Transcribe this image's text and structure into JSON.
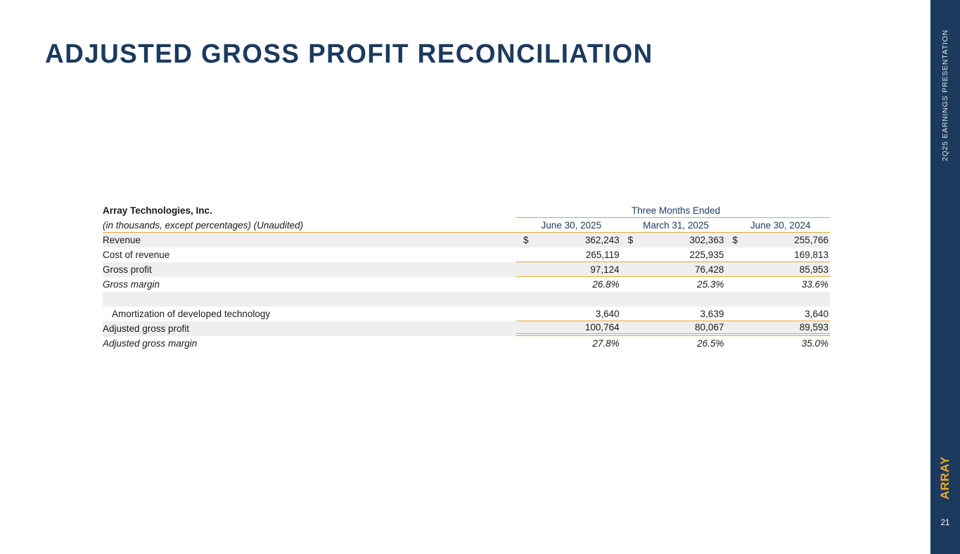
{
  "slide": {
    "title": "ADJUSTED GROSS PROFIT RECONCILIATION",
    "page_number": "21",
    "sidebar_vertical_text": "2Q25 EARNINGS PRESENTATION",
    "sidebar_logo_text": "ARRAY"
  },
  "colors": {
    "navy": "#1c3a5e",
    "gold": "#dfac30",
    "logo_gold": "#f1a81e",
    "row_shade": "#efefef"
  },
  "table": {
    "company": "Array Technologies, Inc.",
    "subtitle": "(in thousands, except percentages) (Unaudited)",
    "span_header": "Three Months Ended",
    "columns": [
      "June 30, 2025",
      "March 31, 2025",
      "June 30, 2024"
    ],
    "rows": [
      {
        "label": "Revenue",
        "dollar": true,
        "shaded": true,
        "values": [
          "362,243",
          "302,363",
          "255,766"
        ]
      },
      {
        "label": "Cost of revenue",
        "underline": true,
        "values": [
          "265,119",
          "225,935",
          "169,813"
        ]
      },
      {
        "label": "Gross profit",
        "shaded": true,
        "underline": true,
        "values": [
          "97,124",
          "76,428",
          "85,953"
        ]
      },
      {
        "label": "Gross margin",
        "italic": true,
        "values": [
          "26.8%",
          "25.3%",
          "33.6%"
        ]
      },
      {
        "label": "",
        "shaded": true,
        "blank": true,
        "values": [
          "",
          "",
          ""
        ]
      },
      {
        "label": "Amortization of developed technology",
        "indent": true,
        "underline": true,
        "values": [
          "3,640",
          "3,639",
          "3,640"
        ]
      },
      {
        "label": "Adjusted gross profit",
        "shaded": true,
        "double_underline": true,
        "values": [
          "100,764",
          "80,067",
          "89,593"
        ]
      },
      {
        "label": "Adjusted gross margin",
        "italic": true,
        "values": [
          "27.8%",
          "26.5%",
          "35.0%"
        ]
      }
    ]
  }
}
